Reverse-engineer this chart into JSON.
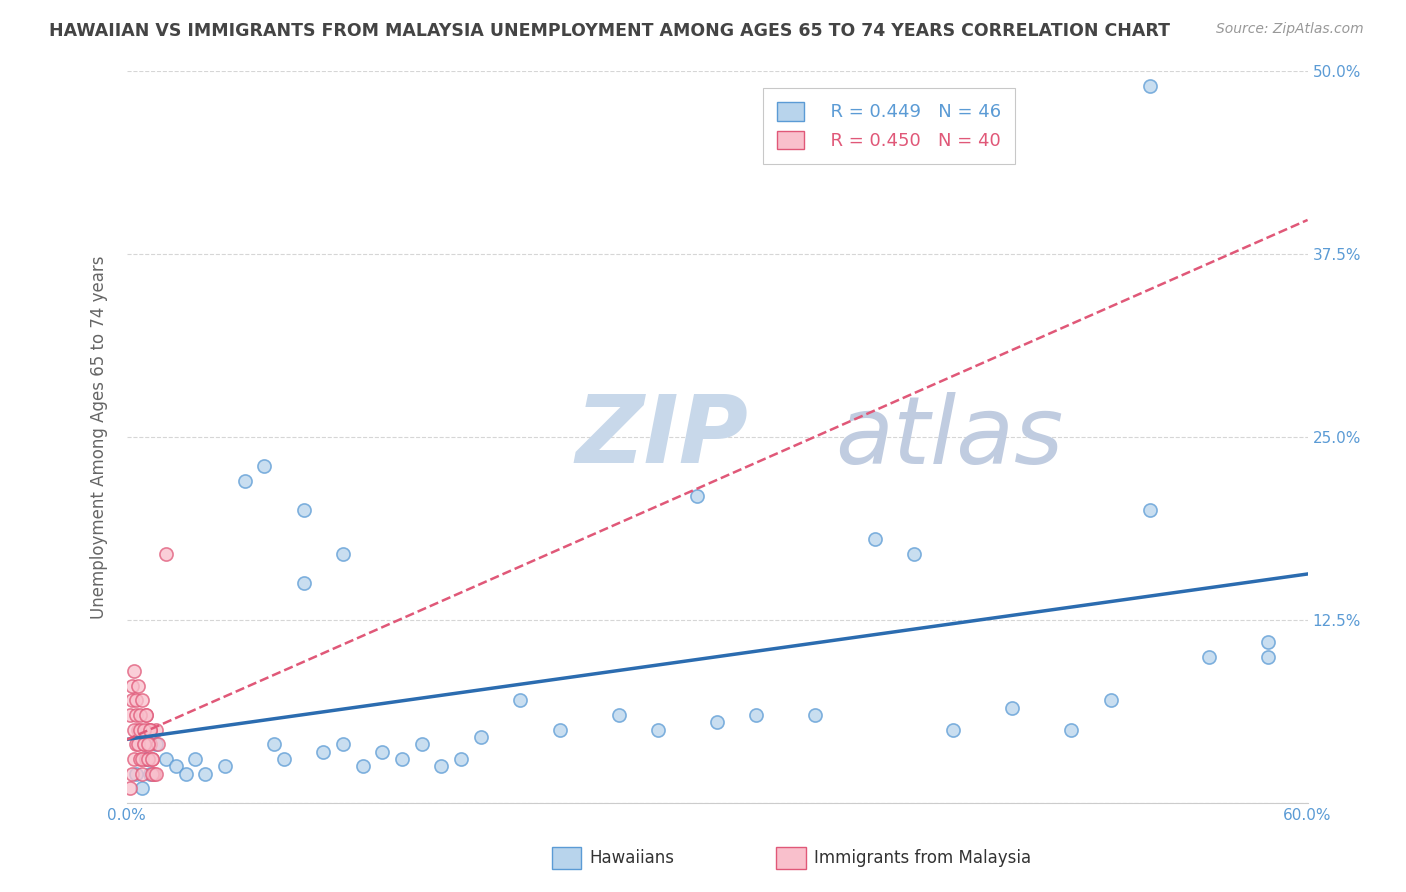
{
  "title": "HAWAIIAN VS IMMIGRANTS FROM MALAYSIA UNEMPLOYMENT AMONG AGES 65 TO 74 YEARS CORRELATION CHART",
  "source": "Source: ZipAtlas.com",
  "ylabel": "Unemployment Among Ages 65 to 74 years",
  "xlim": [
    0.0,
    0.6
  ],
  "ylim": [
    0.0,
    0.5
  ],
  "xticks": [
    0.0,
    0.1,
    0.2,
    0.3,
    0.4,
    0.5,
    0.6
  ],
  "xticklabels": [
    "0.0%",
    "",
    "",
    "",
    "",
    "",
    "60.0%"
  ],
  "yticks": [
    0.0,
    0.125,
    0.25,
    0.375,
    0.5
  ],
  "yticklabels_right": [
    "",
    "12.5%",
    "25.0%",
    "37.5%",
    "50.0%"
  ],
  "legend_items": [
    {
      "label": "Hawaiians",
      "R": "0.449",
      "N": "46",
      "facecolor": "#b8d4ec",
      "edgecolor": "#5b9bd5"
    },
    {
      "label": "Immigrants from Malaysia",
      "R": "0.450",
      "N": "40",
      "facecolor": "#f9c0cc",
      "edgecolor": "#e05878"
    }
  ],
  "hawaiian_x": [
    0.005,
    0.008,
    0.01,
    0.012,
    0.015,
    0.02,
    0.025,
    0.03,
    0.035,
    0.04,
    0.05,
    0.06,
    0.07,
    0.075,
    0.08,
    0.09,
    0.1,
    0.11,
    0.12,
    0.13,
    0.14,
    0.15,
    0.16,
    0.17,
    0.18,
    0.2,
    0.22,
    0.25,
    0.27,
    0.3,
    0.32,
    0.35,
    0.38,
    0.4,
    0.42,
    0.45,
    0.48,
    0.5,
    0.52,
    0.55,
    0.58,
    0.09,
    0.11,
    0.29,
    0.52,
    0.58
  ],
  "hawaiian_y": [
    0.02,
    0.01,
    0.03,
    0.02,
    0.04,
    0.03,
    0.025,
    0.02,
    0.03,
    0.02,
    0.025,
    0.22,
    0.23,
    0.04,
    0.03,
    0.2,
    0.035,
    0.04,
    0.025,
    0.035,
    0.03,
    0.04,
    0.025,
    0.03,
    0.045,
    0.07,
    0.05,
    0.06,
    0.05,
    0.055,
    0.06,
    0.06,
    0.18,
    0.17,
    0.05,
    0.065,
    0.05,
    0.07,
    0.2,
    0.1,
    0.11,
    0.15,
    0.17,
    0.21,
    0.49,
    0.1
  ],
  "malaysia_x": [
    0.002,
    0.003,
    0.004,
    0.005,
    0.006,
    0.007,
    0.008,
    0.009,
    0.01,
    0.011,
    0.012,
    0.013,
    0.014,
    0.015,
    0.016,
    0.002,
    0.004,
    0.006,
    0.008,
    0.01,
    0.012,
    0.003,
    0.005,
    0.007,
    0.009,
    0.011,
    0.013,
    0.003,
    0.005,
    0.007,
    0.009,
    0.011,
    0.013,
    0.015,
    0.004,
    0.006,
    0.008,
    0.01,
    0.012,
    0.02
  ],
  "malaysia_y": [
    0.01,
    0.02,
    0.03,
    0.04,
    0.05,
    0.03,
    0.02,
    0.04,
    0.03,
    0.05,
    0.04,
    0.03,
    0.02,
    0.05,
    0.04,
    0.06,
    0.05,
    0.04,
    0.03,
    0.06,
    0.05,
    0.07,
    0.06,
    0.05,
    0.04,
    0.03,
    0.02,
    0.08,
    0.07,
    0.06,
    0.05,
    0.04,
    0.03,
    0.02,
    0.09,
    0.08,
    0.07,
    0.06,
    0.05,
    0.17
  ],
  "hawaiian_line_color": "#2b6cb0",
  "malaysia_line_color": "#e05878",
  "watermark_zip": "ZIP",
  "watermark_atlas": "atlas",
  "watermark_color_zip": "#c8d8ea",
  "watermark_color_atlas": "#c0cce0",
  "background_color": "#ffffff",
  "grid_color": "#cccccc",
  "title_color": "#444444",
  "axis_label_color": "#666666",
  "tick_color": "#5b9bd5",
  "source_color": "#999999"
}
